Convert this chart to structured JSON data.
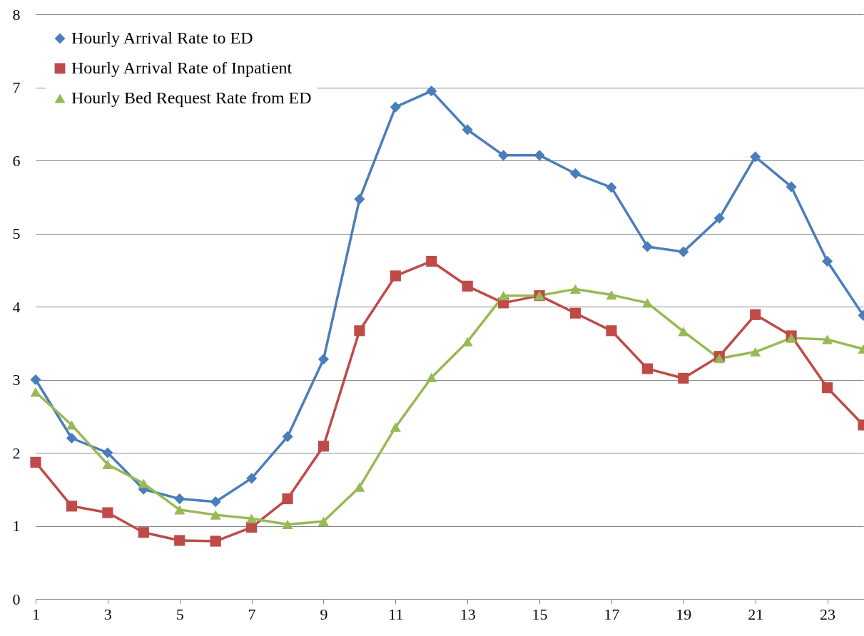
{
  "chart_data": {
    "type": "line",
    "x": [
      1,
      2,
      3,
      4,
      5,
      6,
      7,
      8,
      9,
      10,
      11,
      12,
      13,
      14,
      15,
      16,
      17,
      18,
      19,
      20,
      21,
      22,
      23,
      24
    ],
    "xlim": [
      1,
      24
    ],
    "xticks": [
      1,
      3,
      5,
      7,
      9,
      11,
      13,
      15,
      17,
      19,
      21,
      23
    ],
    "ylim": [
      0,
      8
    ],
    "yticks": [
      0,
      1,
      2,
      3,
      4,
      5,
      6,
      7,
      8
    ],
    "grid": "y",
    "legend": "top left",
    "series": [
      {
        "name": "Hourly Arrival Rate to ED",
        "color": "#4a7ebb",
        "marker": "diamond",
        "values": [
          3.0,
          2.2,
          2.0,
          1.5,
          1.37,
          1.33,
          1.65,
          2.22,
          3.28,
          5.47,
          6.73,
          6.95,
          6.42,
          6.07,
          6.07,
          5.82,
          5.63,
          4.82,
          4.75,
          5.21,
          6.05,
          5.64,
          4.62,
          3.88
        ]
      },
      {
        "name": "Hourly Arrival Rate of Inpatient",
        "color": "#be4b48",
        "marker": "square",
        "values": [
          1.87,
          1.27,
          1.18,
          0.91,
          0.8,
          0.79,
          0.98,
          1.37,
          2.09,
          3.67,
          4.42,
          4.62,
          4.28,
          4.05,
          4.15,
          3.91,
          3.67,
          3.15,
          3.02,
          3.32,
          3.89,
          3.6,
          2.89,
          2.38
        ]
      },
      {
        "name": "Hourly Bed Request Rate from ED",
        "color": "#98b954",
        "marker": "triangle",
        "values": [
          2.83,
          2.38,
          1.84,
          1.58,
          1.22,
          1.15,
          1.1,
          1.02,
          1.06,
          1.53,
          2.35,
          3.03,
          3.52,
          4.15,
          4.15,
          4.24,
          4.16,
          4.05,
          3.66,
          3.29,
          3.38,
          3.57,
          3.55,
          3.42
        ]
      }
    ]
  }
}
